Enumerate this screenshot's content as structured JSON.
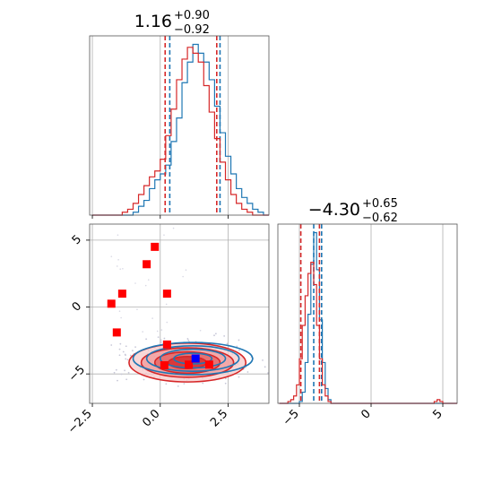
{
  "chart_data": [
    {
      "panel": "top-left",
      "type": "histogram",
      "title": {
        "main": "1.16",
        "upper": "+0.90",
        "lower": "−0.92"
      },
      "x": {
        "ticks": [
          -2.5,
          0.0,
          2.5
        ],
        "range": [
          -2.6,
          4.0
        ]
      },
      "series": [
        {
          "color": "#1f77b4",
          "quantiles": [
            0.35,
            2.2
          ],
          "bins": [
            [
              -2.5,
              0
            ],
            [
              -1.0,
              1
            ],
            [
              -0.8,
              3
            ],
            [
              -0.6,
              5
            ],
            [
              -0.4,
              9
            ],
            [
              -0.2,
              12
            ],
            [
              0.0,
              14
            ],
            [
              0.2,
              17
            ],
            [
              0.4,
              25
            ],
            [
              0.6,
              33
            ],
            [
              0.8,
              45
            ],
            [
              1.0,
              52
            ],
            [
              1.2,
              58
            ],
            [
              1.4,
              55
            ],
            [
              1.6,
              52
            ],
            [
              1.8,
              46
            ],
            [
              2.0,
              37
            ],
            [
              2.2,
              28
            ],
            [
              2.4,
              20
            ],
            [
              2.6,
              14
            ],
            [
              2.8,
              9
            ],
            [
              3.0,
              6
            ],
            [
              3.2,
              4
            ],
            [
              3.4,
              2
            ],
            [
              3.6,
              1
            ],
            [
              3.8,
              0
            ]
          ]
        },
        {
          "color": "#d62728",
          "quantiles": [
            0.18,
            2.08
          ],
          "bins": [
            [
              -2.5,
              0
            ],
            [
              -1.4,
              1
            ],
            [
              -1.2,
              2
            ],
            [
              -1.0,
              4
            ],
            [
              -0.8,
              7
            ],
            [
              -0.6,
              10
            ],
            [
              -0.4,
              13
            ],
            [
              -0.2,
              15
            ],
            [
              0.0,
              19
            ],
            [
              0.2,
              27
            ],
            [
              0.4,
              36
            ],
            [
              0.6,
              46
            ],
            [
              0.8,
              53
            ],
            [
              1.0,
              57
            ],
            [
              1.2,
              55
            ],
            [
              1.4,
              52
            ],
            [
              1.6,
              44
            ],
            [
              1.8,
              35
            ],
            [
              2.0,
              26
            ],
            [
              2.2,
              18
            ],
            [
              2.4,
              12
            ],
            [
              2.6,
              7
            ],
            [
              2.8,
              4
            ],
            [
              3.0,
              2
            ],
            [
              3.2,
              1
            ],
            [
              3.4,
              0
            ]
          ]
        }
      ]
    },
    {
      "panel": "bottom-left",
      "type": "scatter",
      "x": {
        "ticks": [
          -2.5,
          0.0,
          2.5
        ],
        "range": [
          -2.6,
          4.0
        ]
      },
      "y": {
        "ticks": [
          5,
          0,
          -5
        ],
        "range": [
          -7.2,
          6.2
        ]
      },
      "contours": [
        {
          "color": "#d62728",
          "center": [
            1.0,
            -4.15
          ],
          "rx": [
            0.7,
            1.2,
            1.7,
            2.15
          ],
          "ry": [
            0.45,
            0.8,
            1.1,
            1.45
          ]
        },
        {
          "color": "#1f77b4",
          "center": [
            1.2,
            -3.85
          ],
          "rx": [
            0.7,
            1.2,
            1.7,
            2.2
          ],
          "ry": [
            0.4,
            0.7,
            0.95,
            1.2
          ]
        }
      ],
      "red_points": [
        [
          -0.2,
          4.5
        ],
        [
          -0.5,
          3.2
        ],
        [
          -1.4,
          1.0
        ],
        [
          0.25,
          1.0
        ],
        [
          -1.8,
          0.25
        ],
        [
          -1.6,
          -1.9
        ],
        [
          0.25,
          -2.8
        ],
        [
          1.05,
          -4.3
        ],
        [
          1.8,
          -4.3
        ],
        [
          0.15,
          -4.35
        ]
      ],
      "blue_points": [
        [
          1.3,
          -3.85
        ]
      ]
    },
    {
      "panel": "bottom-right",
      "type": "histogram",
      "title": {
        "main": "−4.30",
        "upper": "+0.65",
        "lower": "−0.62"
      },
      "x": {
        "ticks": [
          -5,
          0,
          5
        ],
        "range": [
          -6.5,
          6.0
        ]
      },
      "series": [
        {
          "color": "#1f77b4",
          "quantiles": [
            -4.0,
            -3.45
          ],
          "bins": [
            [
              -6.4,
              0
            ],
            [
              -5.0,
              1
            ],
            [
              -4.8,
              6
            ],
            [
              -4.6,
              22
            ],
            [
              -4.4,
              48
            ],
            [
              -4.2,
              75
            ],
            [
              -4.0,
              92
            ],
            [
              -3.8,
              72
            ],
            [
              -3.6,
              45
            ],
            [
              -3.4,
              22
            ],
            [
              -3.2,
              8
            ],
            [
              -3.0,
              2
            ],
            [
              -2.8,
              0
            ]
          ]
        },
        {
          "color": "#d62728",
          "quantiles": [
            -4.9,
            -3.6
          ],
          "bins": [
            [
              -6.4,
              0
            ],
            [
              -5.8,
              1
            ],
            [
              -5.6,
              2
            ],
            [
              -5.4,
              4
            ],
            [
              -5.2,
              10
            ],
            [
              -5.0,
              24
            ],
            [
              -4.8,
              42
            ],
            [
              -4.6,
              58
            ],
            [
              -4.4,
              70
            ],
            [
              -4.2,
              76
            ],
            [
              -4.0,
              64
            ],
            [
              -3.8,
              42
            ],
            [
              -3.6,
              24
            ],
            [
              -3.4,
              10
            ],
            [
              -3.2,
              4
            ],
            [
              -3.0,
              1
            ],
            [
              -2.8,
              0
            ],
            [
              4.4,
              1
            ],
            [
              4.6,
              2
            ],
            [
              4.8,
              1
            ],
            [
              5.0,
              0
            ]
          ]
        }
      ]
    }
  ]
}
